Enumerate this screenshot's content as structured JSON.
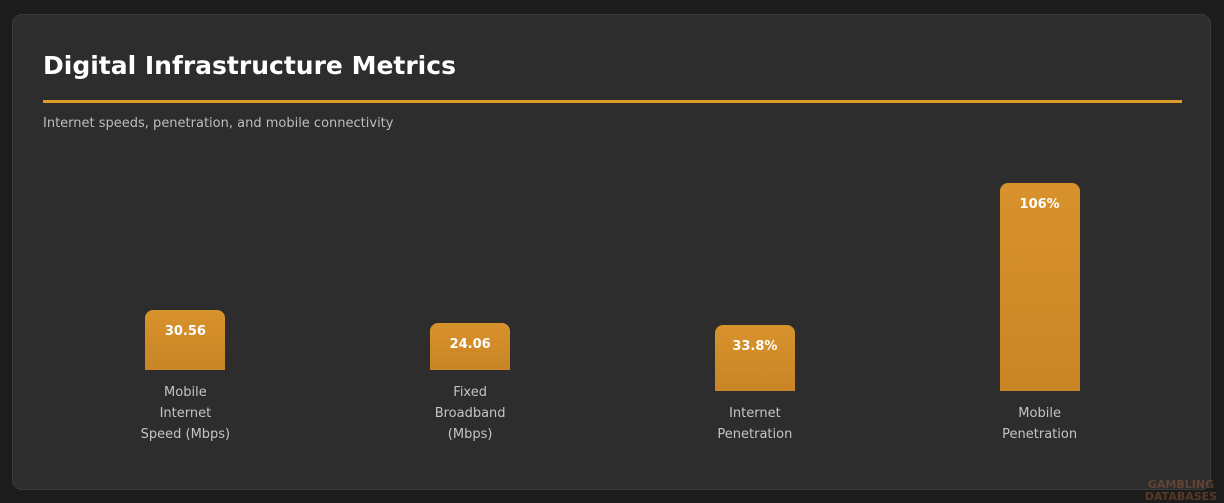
{
  "chart_data": {
    "type": "bar",
    "title": "Digital Infrastructure Metrics",
    "subtitle": "Internet speeds, penetration, and mobile connectivity",
    "categories": [
      "Mobile Internet Speed (Mbps)",
      "Fixed Broadband (Mbps)",
      "Internet Penetration",
      "Mobile Penetration"
    ],
    "values": [
      30.56,
      24.06,
      33.8,
      106
    ],
    "value_labels": [
      "30.56",
      "24.06",
      "33.8%",
      "106%"
    ],
    "color": "#d8922c"
  },
  "watermark": "GAMBLING DATABASES"
}
